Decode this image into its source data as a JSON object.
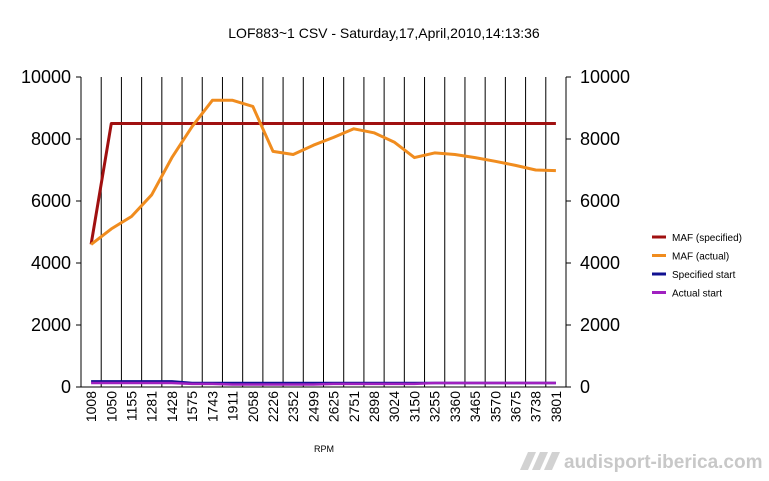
{
  "chart_data": {
    "type": "line",
    "title": "LOF883~1 CSV - Saturday,17,April,2010,14:13:36",
    "xlabel": "RPM",
    "ylabel": "",
    "categories": [
      "1008",
      "1050",
      "1155",
      "1281",
      "1428",
      "1575",
      "1743",
      "1911",
      "2058",
      "2226",
      "2352",
      "2499",
      "2625",
      "2751",
      "2898",
      "3024",
      "3150",
      "3255",
      "3360",
      "3465",
      "3570",
      "3675",
      "3738",
      "3801"
    ],
    "ylim": [
      0,
      10000
    ],
    "yticks": [
      "0",
      "2000",
      "4000",
      "6000",
      "8000",
      "10000"
    ],
    "grid": "vertical",
    "legend_position": "right",
    "series": [
      {
        "name": "MAF (specified)",
        "color": "#a01010",
        "values": [
          4600,
          8500,
          8500,
          8500,
          8500,
          8500,
          8500,
          8500,
          8500,
          8500,
          8500,
          8500,
          8500,
          8500,
          8500,
          8500,
          8500,
          8500,
          8500,
          8500,
          8500,
          8500,
          8500,
          8500
        ]
      },
      {
        "name": "MAF (actual)",
        "color": "#f08c1e",
        "values": [
          4600,
          5100,
          5500,
          6200,
          7400,
          8400,
          9250,
          9250,
          9050,
          7600,
          7500,
          7800,
          8050,
          8330,
          8200,
          7900,
          7400,
          7550,
          7500,
          7400,
          7280,
          7150,
          7000,
          6980
        ]
      },
      {
        "name": "Specified start",
        "color": "#101090",
        "values": [
          180,
          180,
          180,
          180,
          180,
          130,
          130,
          130,
          130,
          130,
          130,
          130,
          130,
          130,
          130,
          130,
          130,
          130,
          130,
          130,
          130,
          130,
          130,
          130
        ]
      },
      {
        "name": "Actual start",
        "color": "#a020c0",
        "values": [
          130,
          130,
          130,
          130,
          130,
          100,
          100,
          80,
          80,
          80,
          80,
          80,
          100,
          100,
          100,
          100,
          100,
          130,
          130,
          130,
          130,
          130,
          130,
          130
        ]
      }
    ]
  },
  "watermark": "audisport-iberica.com"
}
